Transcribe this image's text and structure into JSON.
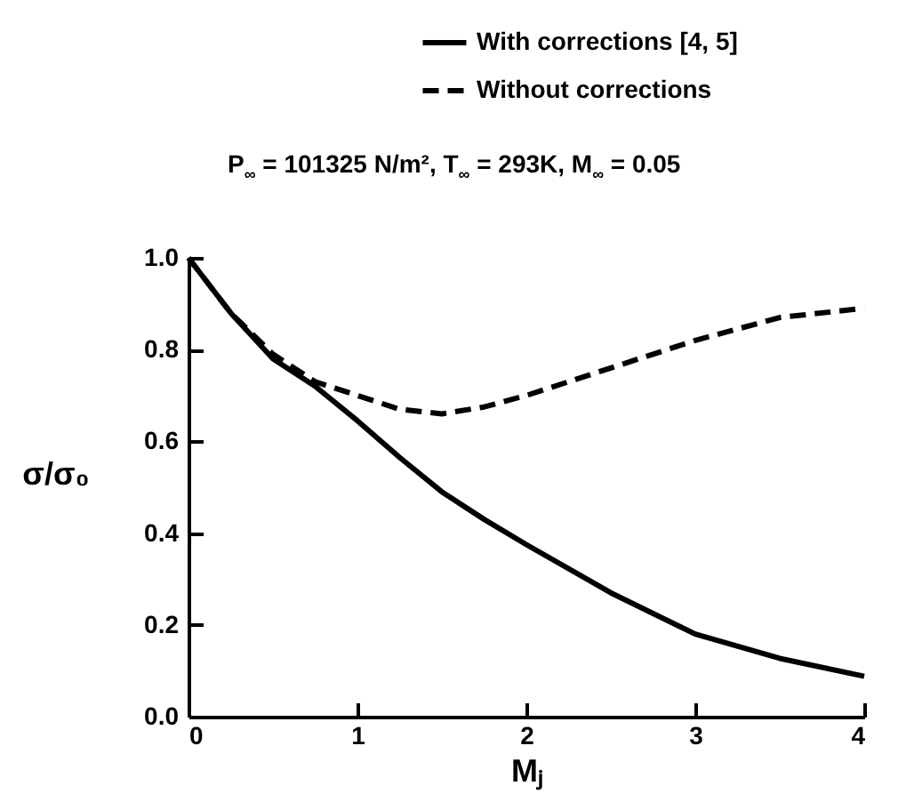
{
  "chart_data": {
    "type": "line",
    "annotations": [
      "P$_{∞}$ = 101325 N/m², T$_{∞}$ = 293K, M$_{∞}$ = 0.05"
    ],
    "xlabel": "Mⱼ",
    "ylabel": "σ/σ₀",
    "x": [
      0,
      0.25,
      0.5,
      0.75,
      1,
      1.25,
      1.5,
      1.75,
      2,
      2.5,
      3,
      3.5,
      4
    ],
    "series": [
      {
        "name": "With corrections [4, 5]",
        "color": "#000000",
        "line_style": "solid",
        "values": [
          1.0,
          0.88,
          0.78,
          0.72,
          0.645,
          0.565,
          0.49,
          0.43,
          0.375,
          0.27,
          0.18,
          0.127,
          0.088
        ]
      },
      {
        "name": "Without corrections",
        "color": "#000000",
        "line_style": "dashed",
        "values": [
          1.0,
          0.88,
          0.79,
          0.73,
          0.7,
          0.67,
          0.66,
          0.675,
          0.7,
          0.76,
          0.82,
          0.87,
          0.89
        ]
      }
    ],
    "xlim": [
      0,
      4
    ],
    "xticks": [
      0,
      1,
      2,
      3,
      4
    ],
    "ylim": [
      0,
      1
    ],
    "yticks": [
      {
        "value": 0,
        "label": "0.0"
      },
      {
        "value": 0.2,
        "label": "0.2"
      },
      {
        "value": 0.4,
        "label": "0.4"
      },
      {
        "value": 0.6,
        "label": "0.6"
      },
      {
        "value": 0.8,
        "label": "0.8"
      },
      {
        "value": 1,
        "label": "1.0"
      }
    ],
    "legend": "top right",
    "grid": false
  }
}
